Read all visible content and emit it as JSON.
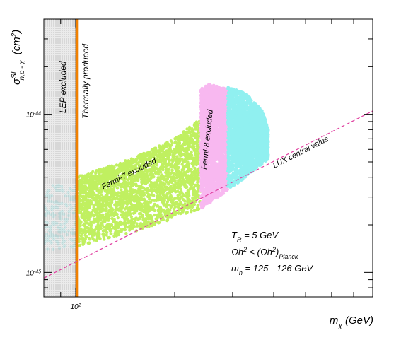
{
  "chart_data": {
    "type": "scatter",
    "x_scale": "log",
    "y_scale": "log",
    "xlim": [
      80,
      800
    ],
    "ylim": [
      7e-46,
      4e-44
    ],
    "xlabel": {
      "main": "m",
      "sub": "χ",
      "unit": " (GeV)"
    },
    "ylabel": {
      "main": "σ",
      "sup": "SI",
      "sub": "n,p - χ",
      "unit": "(cm",
      "unit_sup": "2",
      "unit_end": ")"
    },
    "x_tick_labels": [
      {
        "value": 100,
        "base": "10",
        "exp": "2"
      }
    ],
    "y_tick_labels": [
      {
        "value": 1e-45,
        "base": "10",
        "exp": "-45"
      },
      {
        "value": 1e-44,
        "base": "10",
        "exp": "-44"
      }
    ],
    "regions": [
      {
        "name": "LEP excluded",
        "x_range": [
          80,
          100
        ],
        "color": "#d8d8d8"
      },
      {
        "name": "Thermally produced",
        "x_value": 100,
        "color": "#f08000"
      }
    ],
    "series": [
      {
        "name": "Fermi-7 excluded",
        "color": "#c0f060",
        "x_range": [
          100,
          240
        ],
        "lower": [
          [
            100,
            1.45e-45
          ],
          [
            150,
            1.8e-45
          ],
          [
            200,
            2.2e-45
          ],
          [
            240,
            2.5e-45
          ]
        ],
        "upper": [
          [
            100,
            4e-45
          ],
          [
            150,
            5.3e-45
          ],
          [
            200,
            7e-45
          ],
          [
            240,
            9.5e-45
          ]
        ]
      },
      {
        "name": "Fermi-8 excluded",
        "color": "#f8b8f0",
        "x_range": [
          240,
          290
        ],
        "lower": [
          [
            240,
            2.5e-45
          ],
          [
            290,
            3.3e-45
          ]
        ],
        "upper": [
          [
            240,
            1.45e-44
          ],
          [
            255,
            1.55e-44
          ],
          [
            290,
            1.45e-44
          ]
        ]
      },
      {
        "name": "",
        "color": "#90f0f0",
        "x_range": [
          290,
          385
        ],
        "lower": [
          [
            290,
            3.3e-45
          ],
          [
            330,
            4e-45
          ],
          [
            385,
            5.2e-45
          ]
        ],
        "upper": [
          [
            290,
            1.5e-44
          ],
          [
            330,
            1.35e-44
          ],
          [
            370,
            1.05e-44
          ],
          [
            385,
            8e-45
          ]
        ]
      }
    ],
    "lines": [
      {
        "name": "LUX central value",
        "color": "#e040a0",
        "style": "dashed",
        "points": [
          [
            80,
            9.2e-46
          ],
          [
            800,
            1.05e-44
          ]
        ]
      }
    ],
    "annotations": [
      {
        "text": "LEP excluded",
        "color": "#777777"
      },
      {
        "text": "Thermally produced",
        "color": "#e07000"
      },
      {
        "text": "Fermi-7 excluded",
        "color": "#7aaa20"
      },
      {
        "text": "Fermi-8 excluded",
        "color": "#e060d0"
      },
      {
        "text": "LUX central value",
        "color": "#e040a0"
      }
    ],
    "legend_text": [
      {
        "main": "T",
        "sub": "R",
        "rest": " = 5 GeV"
      },
      {
        "main": "Ωh",
        "sup": "2",
        "mid": " ≤ (Ωh",
        "sup2": "2",
        "paren": ")",
        "sub2": "Planck"
      },
      {
        "main": "m",
        "sub": "h",
        "rest": " = 125 - 126 GeV"
      }
    ],
    "grid": false
  }
}
